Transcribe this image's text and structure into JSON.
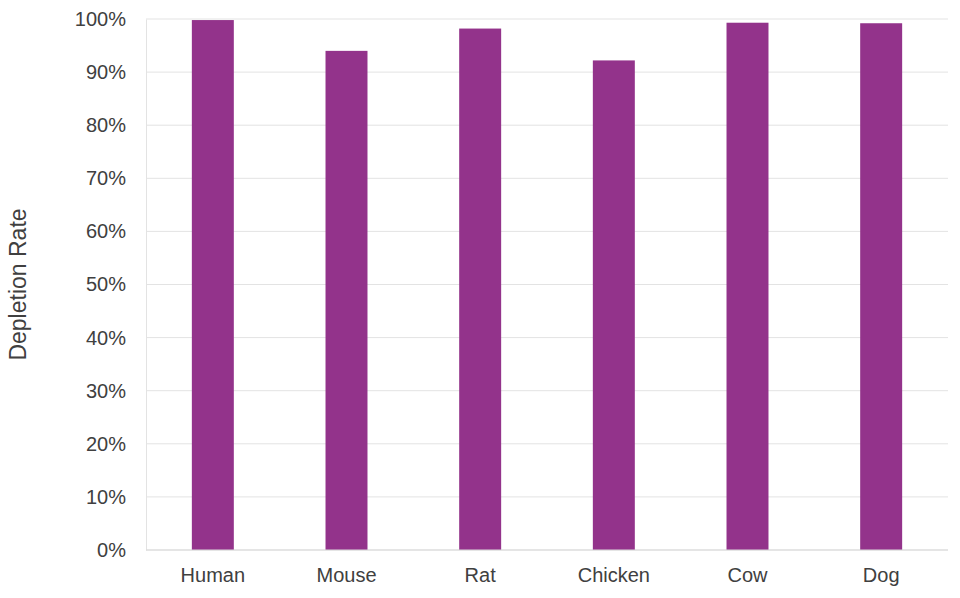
{
  "chart_data": {
    "type": "bar",
    "y_label": "Depletion Rate",
    "categories": [
      "Human",
      "Mouse",
      "Rat",
      "Chicken",
      "Cow",
      "Dog"
    ],
    "values": [
      99.8,
      94,
      98.2,
      92.2,
      99.3,
      99.2
    ],
    "color": "#93338b",
    "ylim": [
      0,
      100
    ],
    "yticks": [
      {
        "value": 0,
        "label": "0%"
      },
      {
        "value": 10,
        "label": "10%"
      },
      {
        "value": 20,
        "label": "20%"
      },
      {
        "value": 30,
        "label": "30%"
      },
      {
        "value": 40,
        "label": "40%"
      },
      {
        "value": 50,
        "label": "50%"
      },
      {
        "value": 60,
        "label": "60%"
      },
      {
        "value": 70,
        "label": "70%"
      },
      {
        "value": 80,
        "label": "80%"
      },
      {
        "value": 90,
        "label": "90%"
      },
      {
        "value": 100,
        "label": "100%"
      }
    ],
    "grid": true
  }
}
